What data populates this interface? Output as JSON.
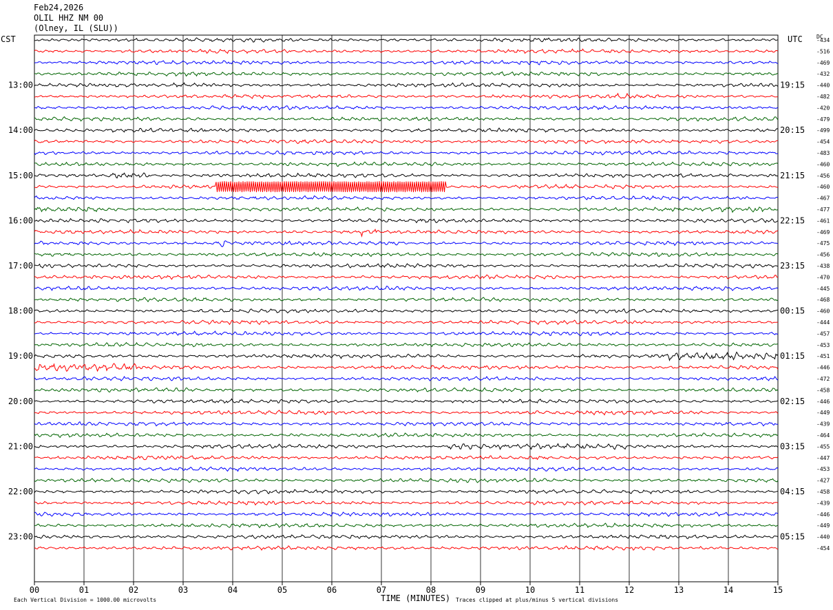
{
  "header": {
    "date": "Feb24,2026",
    "station": "OLIL HHZ NM 00",
    "location": "(Olney, IL (SLU))"
  },
  "left_tz": "CST",
  "right_tz": "UTC",
  "dc_label": "DC",
  "footer": {
    "xlabel": "TIME (MINUTES)",
    "scale_note": "Each Vertical Division = 1000.00 microvolts",
    "clip_note": "Traces clipped at plus/minus 5 vertical divisions"
  },
  "chart_data": {
    "type": "line",
    "title": "",
    "xlabel": "TIME (MINUTES)",
    "xlim": [
      0,
      15
    ],
    "x_ticks": [
      "00",
      "01",
      "02",
      "03",
      "04",
      "05",
      "06",
      "07",
      "08",
      "09",
      "10",
      "11",
      "12",
      "13",
      "14",
      "15"
    ],
    "trace_colors": [
      "#000000",
      "#ff0000",
      "#0000ff",
      "#006400"
    ],
    "left_hour_labels": [
      "13:00",
      "14:00",
      "15:00",
      "16:00",
      "17:00",
      "18:00",
      "19:00",
      "20:00",
      "21:00",
      "22:00",
      "23:00"
    ],
    "right_hour_labels": [
      "19:15",
      "20:15",
      "21:15",
      "22:15",
      "23:15",
      "00:15",
      "01:15",
      "02:15",
      "03:15",
      "04:15",
      "05:15"
    ],
    "dc_offsets": [
      -434,
      -516,
      -469,
      -432,
      -440,
      -482,
      -420,
      -479,
      -499,
      -454,
      -483,
      -460,
      -456,
      -460,
      -467,
      -477,
      -461,
      -469,
      -475,
      -456,
      -438,
      -470,
      -445,
      -468,
      -460,
      -444,
      -457,
      -453,
      -451,
      -446,
      -472,
      -458,
      -446,
      -449,
      -439,
      -464,
      -455,
      -447,
      -453,
      -427,
      -458,
      -439,
      -446,
      -449,
      -440,
      -454
    ],
    "events": [
      {
        "trace": 13,
        "start_min": 3.65,
        "end_min": 8.3,
        "level": "clipped"
      },
      {
        "trace": 29,
        "start_min": 0.0,
        "end_min": 2.1,
        "level": "high"
      },
      {
        "trace": 28,
        "start_min": 12.75,
        "end_min": 15.0,
        "level": "high"
      },
      {
        "trace": 36,
        "start_min": 8.3,
        "end_min": 12.0,
        "level": "moderate"
      },
      {
        "trace": 12,
        "start_min": 1.5,
        "end_min": 2.3,
        "level": "moderate"
      },
      {
        "trace": 18,
        "start_min": 3.7,
        "end_min": 3.95,
        "level": "high"
      },
      {
        "trace": 17,
        "start_min": 6.6,
        "end_min": 6.95,
        "level": "high"
      },
      {
        "trace": 5,
        "start_min": 11.5,
        "end_min": 12.1,
        "level": "moderate"
      },
      {
        "trace": 15,
        "start_min": 0.0,
        "end_min": 1.3,
        "level": "moderate"
      },
      {
        "trace": 15,
        "start_min": 13.6,
        "end_min": 14.7,
        "level": "moderate"
      }
    ]
  }
}
